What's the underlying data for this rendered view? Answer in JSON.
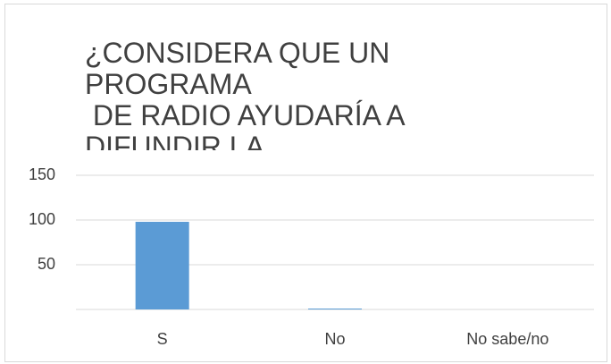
{
  "chart_data": {
    "type": "bar",
    "title": [
      "¿CONSIDERA QUE UN",
      "PROGRAMA",
      " DE RADIO AYUDARÍA A",
      "DIFUNDIR LA"
    ],
    "categories": [
      "S",
      "No",
      "No sabe/no"
    ],
    "values": [
      98,
      1,
      0
    ],
    "color": "#5b9bd5",
    "ylim": [
      0,
      150
    ],
    "yticks": [
      50,
      100,
      150
    ],
    "grid": true
  }
}
